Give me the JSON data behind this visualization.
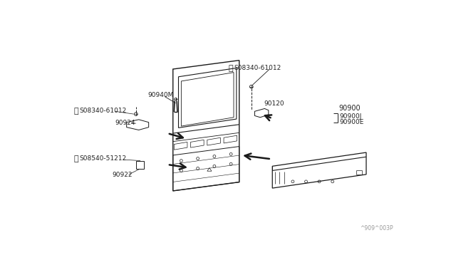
{
  "bg_color": "#ffffff",
  "line_color": "#1a1a1a",
  "text_color": "#222222",
  "watermark_color": "#999999",
  "fig_width": 6.4,
  "fig_height": 3.72,
  "watermark": "^909^003P",
  "labels": {
    "s08340_top": "S08340-61012",
    "s08340_left": "S08340-61012",
    "s08540": "S08540-51212",
    "part_90120": "90120",
    "part_90940M": "90940M",
    "part_90924": "90924",
    "part_90922": "90922",
    "part_90900": "90900",
    "part_90900J": "90900J",
    "part_90900E": "90900E"
  }
}
